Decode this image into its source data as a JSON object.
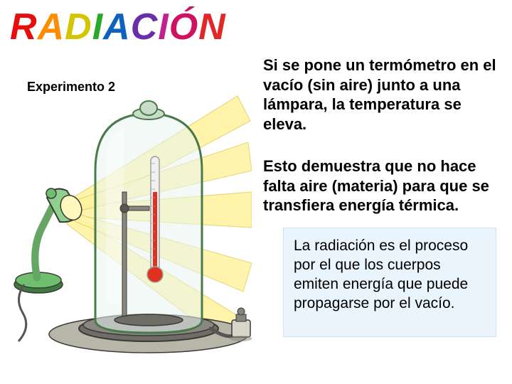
{
  "title": {
    "letters": [
      {
        "ch": "R",
        "color": "#e90c0c"
      },
      {
        "ch": "A",
        "color": "#ff8c00"
      },
      {
        "ch": "D",
        "color": "#d4c500"
      },
      {
        "ch": "I",
        "color": "#2aa82a"
      },
      {
        "ch": "A",
        "color": "#1060c0"
      },
      {
        "ch": "C",
        "color": "#6a2fa8"
      },
      {
        "ch": "I",
        "color": "#c02090"
      },
      {
        "ch": "Ó",
        "color": "#d01060"
      },
      {
        "ch": "N",
        "color": "#e02828"
      }
    ]
  },
  "subtitle": "Experimento 2",
  "paragraphs": {
    "p1": "Si se pone un termómetro en el vacío (sin aire) junto a una lámpara, la temperatura se eleva.",
    "p2": "Esto demuestra que no hace falta aire (materia) para que se transfiera energía térmica.",
    "def": "La radiación es el proceso por el que los cuerpos emiten energía que puede propagarse por el vacío."
  },
  "illustration": {
    "ray_color": "#fff3a0",
    "ray_stroke": "#e0d060",
    "lamp_body_color": "#6fbf6f",
    "lamp_shade_color": "#8fd08f",
    "lamp_shadow": "#3e7a3e",
    "lamp_inner": "#fff9c0",
    "stand_color": "#8a8680",
    "stand_shadow": "#5a5650",
    "stand_base_color": "#706c66",
    "jar_glass_fill": "#eaf4f0",
    "jar_glass_edge": "#4a7a4a",
    "jar_top": "#c8dcc8",
    "thermo_red": "#e03020",
    "thermo_glass": "#f0f0f0",
    "thermo_outline": "#a0a0a0",
    "table_color": "#b8b6a8",
    "outline": "#3a3a3a",
    "pump_color": "#d8d6c8",
    "pump_dark": "#88867a",
    "hose_color": "#555"
  }
}
